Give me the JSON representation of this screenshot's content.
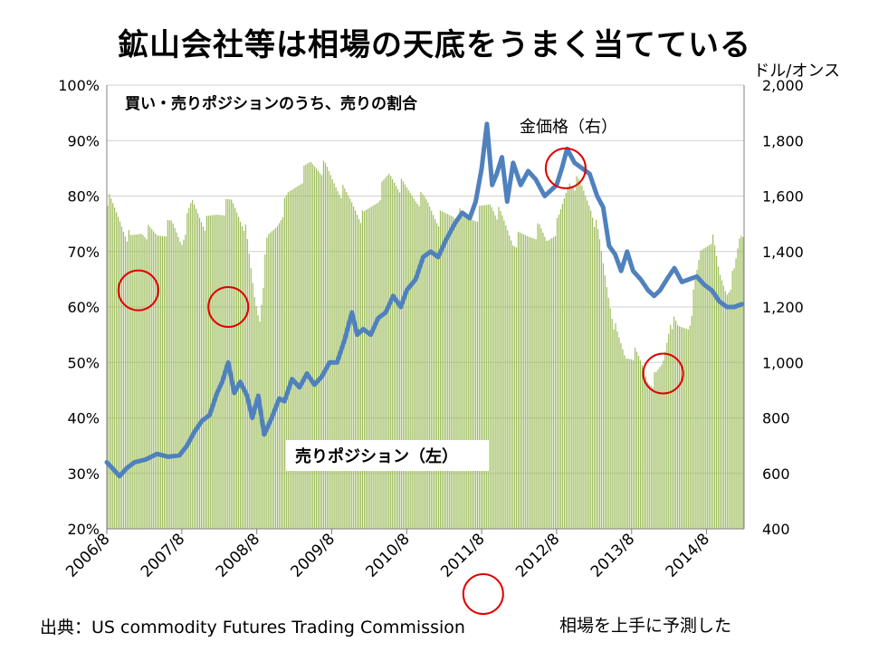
{
  "page": {
    "title": "鉱山会社等は相場の天底をうまく当てている",
    "source": "出典：US commodity Futures Trading Commission",
    "note": "相場を上手に予測した"
  },
  "chart_data": {
    "type": "bar+line",
    "x_tick_labels": [
      "2006/8",
      "2007/8",
      "2008/8",
      "2009/8",
      "2010/8",
      "2011/8",
      "2012/8",
      "2013/8",
      "2014/8"
    ],
    "left_axis": {
      "ticks": [
        "20%",
        "30%",
        "40%",
        "50%",
        "60%",
        "70%",
        "80%",
        "90%",
        "100%"
      ],
      "range": [
        20,
        100
      ],
      "unit": "%"
    },
    "right_axis": {
      "label": "ドル/オンス",
      "ticks": [
        "400",
        "600",
        "800",
        "1,000",
        "1,200",
        "1,400",
        "1,600",
        "1,800",
        "2,000"
      ],
      "range": [
        400,
        2000
      ]
    },
    "bar_series": {
      "name": "買い・売りポジションのうち、売りの割合",
      "label": "売りポジション（左）",
      "color": "#9bbb59",
      "points": [
        [
          2006.58,
          80
        ],
        [
          2006.75,
          76
        ],
        [
          2006.9,
          72
        ],
        [
          2007.05,
          74
        ],
        [
          2007.25,
          73
        ],
        [
          2007.45,
          75
        ],
        [
          2007.58,
          72
        ],
        [
          2007.72,
          79
        ],
        [
          2007.9,
          75
        ],
        [
          2008.05,
          77
        ],
        [
          2008.25,
          79
        ],
        [
          2008.42,
          75
        ],
        [
          2008.55,
          62
        ],
        [
          2008.62,
          58
        ],
        [
          2008.72,
          72
        ],
        [
          2008.85,
          75
        ],
        [
          2009.0,
          80
        ],
        [
          2009.15,
          83
        ],
        [
          2009.3,
          86
        ],
        [
          2009.5,
          85
        ],
        [
          2009.65,
          82
        ],
        [
          2009.85,
          79
        ],
        [
          2010.0,
          76
        ],
        [
          2010.2,
          80
        ],
        [
          2010.35,
          84
        ],
        [
          2010.5,
          82
        ],
        [
          2010.7,
          80
        ],
        [
          2010.85,
          79
        ],
        [
          2011.0,
          76
        ],
        [
          2011.2,
          77
        ],
        [
          2011.4,
          76
        ],
        [
          2011.55,
          77
        ],
        [
          2011.7,
          79
        ],
        [
          2011.85,
          76
        ],
        [
          2012.0,
          72
        ],
        [
          2012.2,
          73
        ],
        [
          2012.35,
          74
        ],
        [
          2012.45,
          72
        ],
        [
          2012.6,
          75
        ],
        [
          2012.75,
          83
        ],
        [
          2012.9,
          82
        ],
        [
          2013.05,
          78
        ],
        [
          2013.15,
          72
        ],
        [
          2013.25,
          64
        ],
        [
          2013.38,
          55
        ],
        [
          2013.5,
          51
        ],
        [
          2013.6,
          52
        ],
        [
          2013.7,
          50
        ],
        [
          2013.8,
          47
        ],
        [
          2013.9,
          47
        ],
        [
          2014.0,
          50
        ],
        [
          2014.1,
          58
        ],
        [
          2014.2,
          56
        ],
        [
          2014.35,
          57
        ],
        [
          2014.5,
          70
        ],
        [
          2014.65,
          73
        ],
        [
          2014.75,
          66
        ],
        [
          2014.85,
          63
        ],
        [
          2014.95,
          66
        ],
        [
          2015.03,
          73
        ]
      ]
    },
    "line_series": {
      "name": "金価格（右）",
      "color": "#4f81bd",
      "points": [
        [
          2006.58,
          640
        ],
        [
          2006.65,
          620
        ],
        [
          2006.75,
          590
        ],
        [
          2006.85,
          620
        ],
        [
          2006.95,
          640
        ],
        [
          2007.1,
          650
        ],
        [
          2007.25,
          670
        ],
        [
          2007.4,
          660
        ],
        [
          2007.55,
          665
        ],
        [
          2007.65,
          700
        ],
        [
          2007.75,
          750
        ],
        [
          2007.85,
          790
        ],
        [
          2007.95,
          810
        ],
        [
          2008.05,
          890
        ],
        [
          2008.12,
          930
        ],
        [
          2008.2,
          1000
        ],
        [
          2008.28,
          890
        ],
        [
          2008.36,
          930
        ],
        [
          2008.45,
          880
        ],
        [
          2008.52,
          800
        ],
        [
          2008.6,
          880
        ],
        [
          2008.68,
          740
        ],
        [
          2008.78,
          800
        ],
        [
          2008.88,
          870
        ],
        [
          2008.95,
          860
        ],
        [
          2009.05,
          940
        ],
        [
          2009.15,
          910
        ],
        [
          2009.25,
          960
        ],
        [
          2009.35,
          920
        ],
        [
          2009.45,
          950
        ],
        [
          2009.55,
          1000
        ],
        [
          2009.65,
          1000
        ],
        [
          2009.75,
          1080
        ],
        [
          2009.85,
          1180
        ],
        [
          2009.92,
          1100
        ],
        [
          2010.0,
          1120
        ],
        [
          2010.1,
          1100
        ],
        [
          2010.2,
          1160
        ],
        [
          2010.3,
          1180
        ],
        [
          2010.4,
          1240
        ],
        [
          2010.5,
          1200
        ],
        [
          2010.58,
          1260
        ],
        [
          2010.7,
          1300
        ],
        [
          2010.8,
          1380
        ],
        [
          2010.9,
          1400
        ],
        [
          2011.0,
          1380
        ],
        [
          2011.1,
          1440
        ],
        [
          2011.22,
          1500
        ],
        [
          2011.32,
          1540
        ],
        [
          2011.42,
          1520
        ],
        [
          2011.5,
          1580
        ],
        [
          2011.58,
          1700
        ],
        [
          2011.65,
          1860
        ],
        [
          2011.72,
          1640
        ],
        [
          2011.78,
          1680
        ],
        [
          2011.85,
          1740
        ],
        [
          2011.92,
          1580
        ],
        [
          2012.0,
          1720
        ],
        [
          2012.1,
          1640
        ],
        [
          2012.2,
          1690
        ],
        [
          2012.3,
          1660
        ],
        [
          2012.42,
          1600
        ],
        [
          2012.5,
          1620
        ],
        [
          2012.58,
          1640
        ],
        [
          2012.65,
          1700
        ],
        [
          2012.72,
          1770
        ],
        [
          2012.82,
          1720
        ],
        [
          2012.92,
          1700
        ],
        [
          2013.02,
          1680
        ],
        [
          2013.12,
          1600
        ],
        [
          2013.2,
          1560
        ],
        [
          2013.28,
          1420
        ],
        [
          2013.36,
          1390
        ],
        [
          2013.44,
          1330
        ],
        [
          2013.52,
          1400
        ],
        [
          2013.6,
          1330
        ],
        [
          2013.7,
          1300
        ],
        [
          2013.8,
          1260
        ],
        [
          2013.88,
          1240
        ],
        [
          2013.96,
          1260
        ],
        [
          2014.05,
          1300
        ],
        [
          2014.15,
          1340
        ],
        [
          2014.25,
          1290
        ],
        [
          2014.35,
          1300
        ],
        [
          2014.45,
          1310
        ],
        [
          2014.55,
          1280
        ],
        [
          2014.65,
          1260
        ],
        [
          2014.75,
          1220
        ],
        [
          2014.85,
          1200
        ],
        [
          2014.95,
          1200
        ],
        [
          2015.05,
          1210
        ]
      ]
    },
    "annotations": [
      "金価格（右）",
      "売りポジション（左）"
    ],
    "circle_markers": [
      {
        "x": 2007.0,
        "y_pct": 63
      },
      {
        "x": 2008.2,
        "y_pct": 60
      },
      {
        "x": 2012.7,
        "y_right": 1700
      },
      {
        "x": 2014.0,
        "y_pct": 48
      },
      {
        "x": 2011.6,
        "below_axis": true
      }
    ],
    "grid": "horizontal"
  }
}
